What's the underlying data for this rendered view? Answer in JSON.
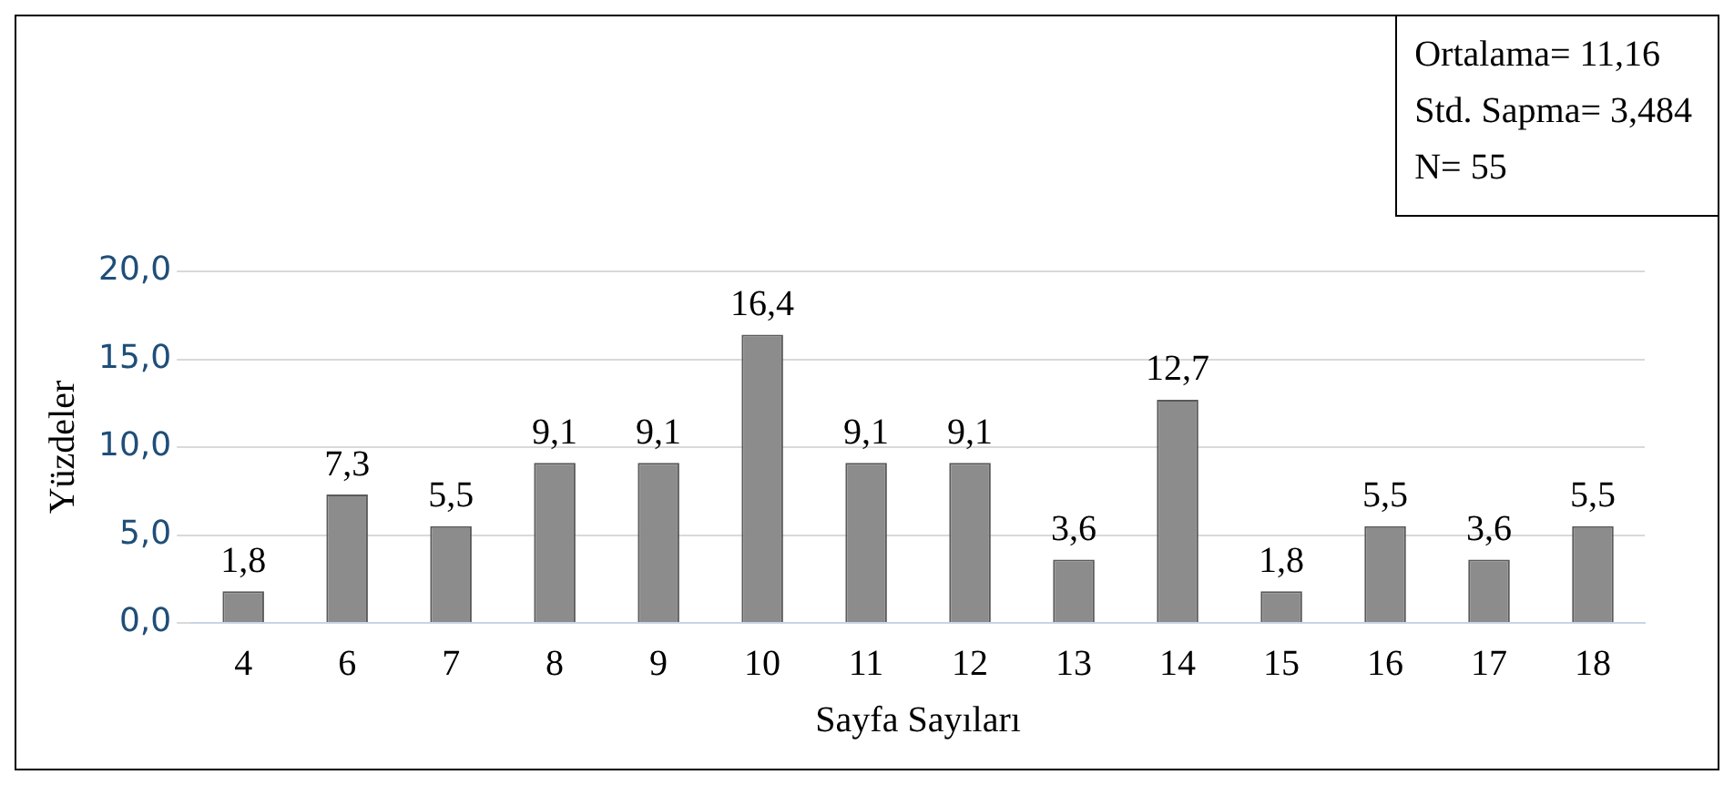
{
  "chart_data": {
    "type": "bar",
    "xlabel": "Sayfa Sayıları",
    "ylabel": "Yüzdeler",
    "categories": [
      "4",
      "6",
      "7",
      "8",
      "9",
      "10",
      "11",
      "12",
      "13",
      "14",
      "15",
      "16",
      "17",
      "18"
    ],
    "values": [
      1.8,
      7.3,
      5.5,
      9.1,
      9.1,
      16.4,
      9.1,
      9.1,
      3.6,
      12.7,
      1.8,
      5.5,
      3.6,
      5.5
    ],
    "value_labels": [
      "1,8",
      "7,3",
      "5,5",
      "9,1",
      "9,1",
      "16,4",
      "9,1",
      "9,1",
      "3,6",
      "12,7",
      "1,8",
      "5,5",
      "3,6",
      "5,5"
    ],
    "color": "#8c8c8c",
    "ylim": [
      0,
      20
    ],
    "yticks": [
      {
        "value": 0,
        "label": "0,0"
      },
      {
        "value": 5,
        "label": "5,0"
      },
      {
        "value": 10,
        "label": "10,0"
      },
      {
        "value": 15,
        "label": "15,0"
      },
      {
        "value": 20,
        "label": "20,0"
      }
    ],
    "grid": "y",
    "legend": false,
    "annotations": [
      "Ortalama= 11,16",
      "Std. Sapma= 3,484",
      "N= 55"
    ]
  }
}
